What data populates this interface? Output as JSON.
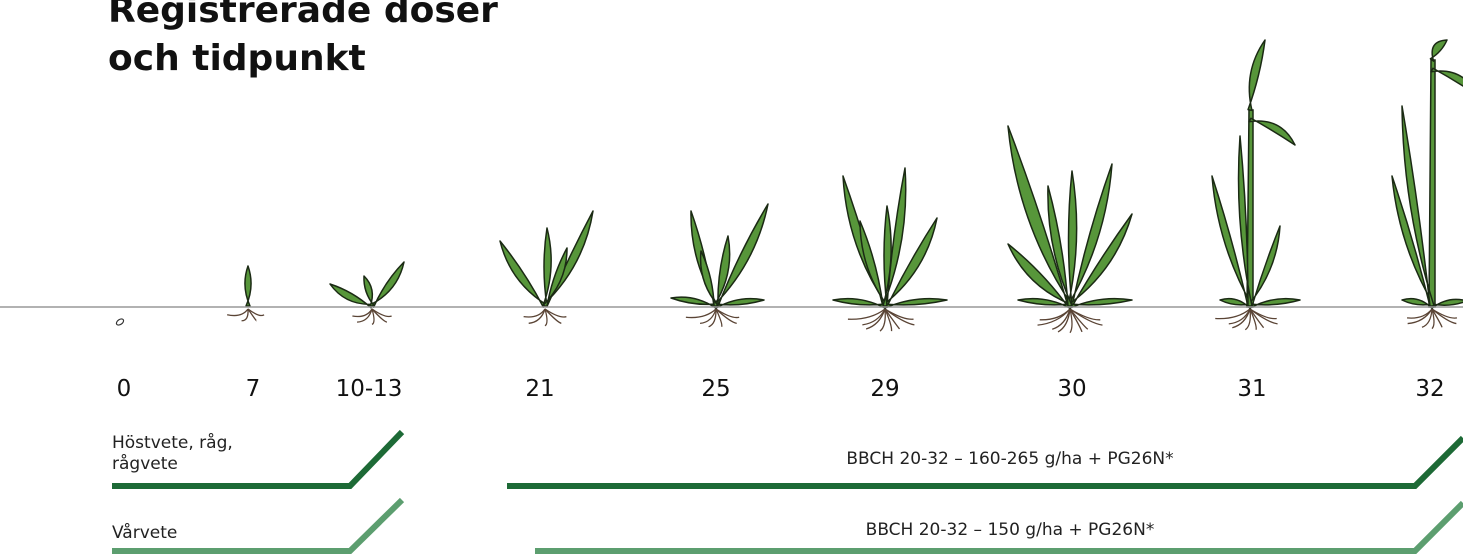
{
  "header": {
    "title_lines": [
      "Registrerade doser",
      "och tidpunkt"
    ]
  },
  "stages": [
    "0",
    "7",
    "10-13",
    "21",
    "25",
    "29",
    "30",
    "31",
    "32"
  ],
  "rows": [
    {
      "label_lines": [
        "Höstvete, råg,",
        "rågvete"
      ],
      "dose": "BBCH 20-32  – 160-265 g/ha + PG26N*"
    },
    {
      "label_lines": [
        "Vårvete"
      ],
      "dose": "BBCH 20-32  – 150 g/ha + PG26N*"
    }
  ]
}
